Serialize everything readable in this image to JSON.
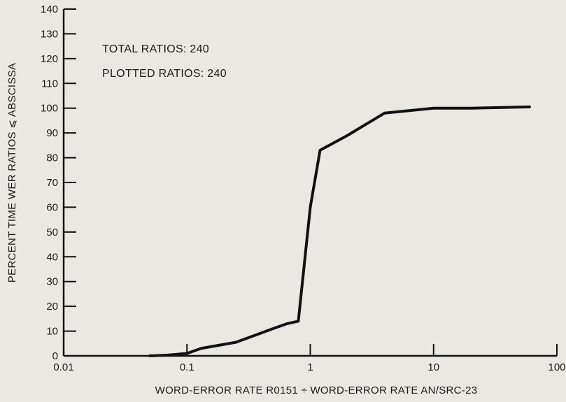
{
  "chart_data": {
    "type": "line",
    "title": "",
    "xlabel": "WORD-ERROR RATE R0151 ÷ WORD-ERROR RATE AN/SRC-23",
    "ylabel": "PERCENT TIME WER RATIOS ⩽ ABSCISSA",
    "x_scale": "log",
    "xlim": [
      0.01,
      100
    ],
    "ylim": [
      0,
      140
    ],
    "x_ticks": [
      0.01,
      0.1,
      1,
      10,
      100
    ],
    "x_tick_labels": [
      "0.01",
      "0.1",
      "1",
      "10",
      "100"
    ],
    "y_ticks": [
      0,
      10,
      20,
      30,
      40,
      50,
      60,
      70,
      80,
      90,
      100,
      110,
      120,
      130,
      140
    ],
    "y_tick_labels": [
      "0",
      "10",
      "20",
      "30",
      "40",
      "50",
      "60",
      "70",
      "80",
      "90",
      "100",
      "110",
      "120",
      "130",
      "140"
    ],
    "grid": false,
    "annotations": [
      "TOTAL RATIOS: 240",
      "PLOTTED RATIOS: 240"
    ],
    "series": [
      {
        "color": "#111111",
        "x": [
          0.05,
          0.07,
          0.1,
          0.13,
          0.25,
          0.5,
          0.65,
          0.8,
          1.0,
          1.2,
          2.0,
          4.0,
          10.0,
          20.0,
          60.0
        ],
        "y": [
          0,
          0.3,
          1,
          3,
          5.5,
          11,
          13,
          14,
          60,
          83,
          89,
          98,
          100,
          100,
          100.5
        ]
      }
    ]
  }
}
